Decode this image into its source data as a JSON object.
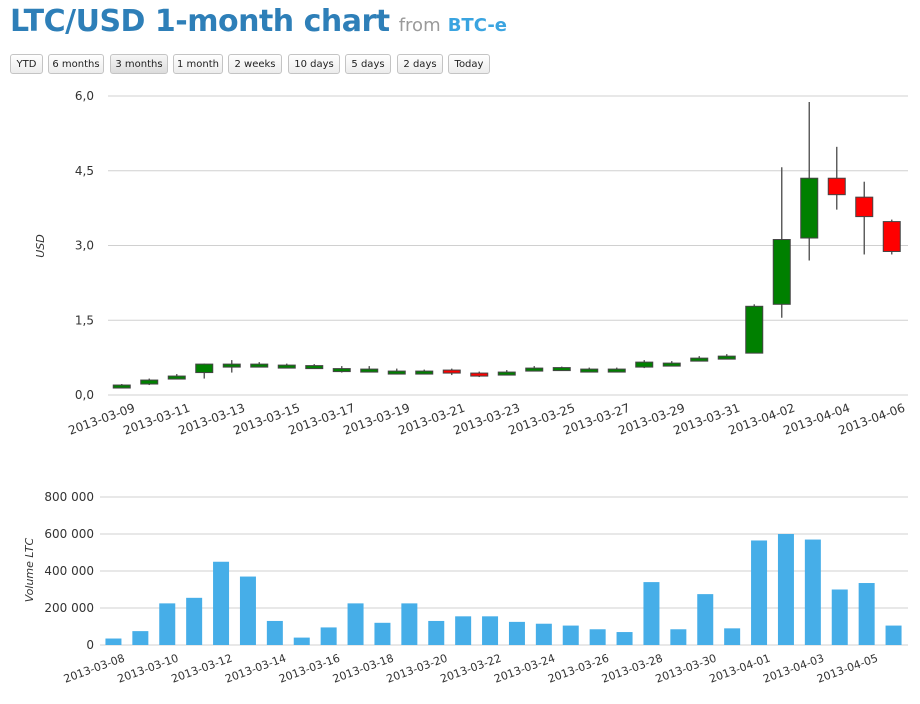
{
  "header": {
    "title": "LTC/USD 1-month chart",
    "from_label": "from",
    "source": "BTC-e"
  },
  "ranges": [
    "YTD",
    "6 months",
    "3 months",
    "1 month",
    "2 weeks",
    "10 days",
    "5 days",
    "2 days",
    "Today"
  ],
  "active_range": "3 months",
  "colors": {
    "up": "#008000",
    "down": "#ff0000",
    "volume": "#46aee8",
    "grid": "#d0d0d0",
    "title": "#2e7fb8",
    "source": "#3aa4e0"
  },
  "chart_data": [
    {
      "type": "candlestick",
      "ylabel": "USD",
      "ylim": [
        0,
        6
      ],
      "yticks": [
        "0,0",
        "1,5",
        "3,0",
        "4,5",
        "6,0"
      ],
      "ytick_values": [
        0,
        1.5,
        3,
        4.5,
        6
      ],
      "xtick_labels": [
        "2013-03-09",
        "2013-03-11",
        "2013-03-13",
        "2013-03-15",
        "2013-03-17",
        "2013-03-19",
        "2013-03-21",
        "2013-03-23",
        "2013-03-25",
        "2013-03-27",
        "2013-03-29",
        "2013-03-31",
        "2013-04-02",
        "2013-04-04",
        "2013-04-06"
      ],
      "grid": true,
      "candles": [
        {
          "date": "2013-03-09",
          "open": 0.18,
          "high": 0.22,
          "low": 0.16,
          "close": 0.2
        },
        {
          "date": "2013-03-10",
          "open": 0.22,
          "high": 0.33,
          "low": 0.2,
          "close": 0.3
        },
        {
          "date": "2013-03-11",
          "open": 0.38,
          "high": 0.42,
          "low": 0.34,
          "close": 0.38
        },
        {
          "date": "2013-03-12",
          "open": 0.45,
          "high": 0.63,
          "low": 0.33,
          "close": 0.62
        },
        {
          "date": "2013-03-13",
          "open": 0.6,
          "high": 0.7,
          "low": 0.45,
          "close": 0.62
        },
        {
          "date": "2013-03-14",
          "open": 0.6,
          "high": 0.66,
          "low": 0.56,
          "close": 0.62
        },
        {
          "date": "2013-03-15",
          "open": 0.6,
          "high": 0.63,
          "low": 0.57,
          "close": 0.6
        },
        {
          "date": "2013-03-16",
          "open": 0.59,
          "high": 0.62,
          "low": 0.56,
          "close": 0.59
        },
        {
          "date": "2013-03-17",
          "open": 0.53,
          "high": 0.58,
          "low": 0.45,
          "close": 0.53
        },
        {
          "date": "2013-03-18",
          "open": 0.52,
          "high": 0.58,
          "low": 0.49,
          "close": 0.52
        },
        {
          "date": "2013-03-19",
          "open": 0.48,
          "high": 0.53,
          "low": 0.44,
          "close": 0.48
        },
        {
          "date": "2013-03-20",
          "open": 0.48,
          "high": 0.51,
          "low": 0.45,
          "close": 0.48
        },
        {
          "date": "2013-03-21",
          "open": 0.5,
          "high": 0.53,
          "low": 0.4,
          "close": 0.45
        },
        {
          "date": "2013-03-22",
          "open": 0.44,
          "high": 0.47,
          "low": 0.36,
          "close": 0.42
        },
        {
          "date": "2013-03-23",
          "open": 0.46,
          "high": 0.5,
          "low": 0.43,
          "close": 0.46
        },
        {
          "date": "2013-03-24",
          "open": 0.54,
          "high": 0.58,
          "low": 0.51,
          "close": 0.54
        },
        {
          "date": "2013-03-25",
          "open": 0.55,
          "high": 0.57,
          "low": 0.52,
          "close": 0.55
        },
        {
          "date": "2013-03-26",
          "open": 0.52,
          "high": 0.55,
          "low": 0.49,
          "close": 0.52
        },
        {
          "date": "2013-03-27",
          "open": 0.52,
          "high": 0.55,
          "low": 0.5,
          "close": 0.52
        },
        {
          "date": "2013-03-28",
          "open": 0.56,
          "high": 0.7,
          "low": 0.54,
          "close": 0.66
        },
        {
          "date": "2013-03-29",
          "open": 0.64,
          "high": 0.68,
          "low": 0.61,
          "close": 0.64
        },
        {
          "date": "2013-03-30",
          "open": 0.74,
          "high": 0.78,
          "low": 0.7,
          "close": 0.74
        },
        {
          "date": "2013-03-31",
          "open": 0.78,
          "high": 0.82,
          "low": 0.76,
          "close": 0.78
        },
        {
          "date": "2013-04-01",
          "open": 0.84,
          "high": 1.82,
          "low": 0.84,
          "close": 1.78
        },
        {
          "date": "2013-04-02",
          "open": 1.82,
          "high": 4.57,
          "low": 1.55,
          "close": 3.12
        },
        {
          "date": "2013-04-03",
          "open": 3.15,
          "high": 5.88,
          "low": 2.7,
          "close": 4.35
        },
        {
          "date": "2013-04-04",
          "open": 4.35,
          "high": 4.98,
          "low": 3.72,
          "close": 4.02
        },
        {
          "date": "2013-04-05",
          "open": 3.97,
          "high": 4.28,
          "low": 2.82,
          "close": 3.58
        },
        {
          "date": "2013-04-06",
          "open": 3.48,
          "high": 3.52,
          "low": 2.82,
          "close": 2.88
        }
      ]
    },
    {
      "type": "bar",
      "ylabel": "Volume LTC",
      "ylim": [
        0,
        800000
      ],
      "yticks": [
        "0",
        "200 000",
        "400 000",
        "600 000",
        "800 000"
      ],
      "ytick_values": [
        0,
        200000,
        400000,
        600000,
        800000
      ],
      "xtick_labels": [
        "2013-03-08",
        "2013-03-10",
        "2013-03-12",
        "2013-03-14",
        "2013-03-16",
        "2013-03-18",
        "2013-03-20",
        "2013-03-22",
        "2013-03-24",
        "2013-03-26",
        "2013-03-28",
        "2013-03-30",
        "2013-04-01",
        "2013-04-03",
        "2013-04-05"
      ],
      "grid": true,
      "categories": [
        "2013-03-08",
        "2013-03-09",
        "2013-03-10",
        "2013-03-11",
        "2013-03-12",
        "2013-03-13",
        "2013-03-14",
        "2013-03-15",
        "2013-03-16",
        "2013-03-17",
        "2013-03-18",
        "2013-03-19",
        "2013-03-20",
        "2013-03-21",
        "2013-03-22",
        "2013-03-23",
        "2013-03-24",
        "2013-03-25",
        "2013-03-26",
        "2013-03-27",
        "2013-03-28",
        "2013-03-29",
        "2013-03-30",
        "2013-03-31",
        "2013-04-01",
        "2013-04-02",
        "2013-04-03",
        "2013-04-04",
        "2013-04-05",
        "2013-04-06"
      ],
      "values": [
        35000,
        75000,
        225000,
        255000,
        450000,
        370000,
        130000,
        40000,
        95000,
        225000,
        120000,
        225000,
        130000,
        155000,
        155000,
        125000,
        115000,
        105000,
        85000,
        70000,
        340000,
        85000,
        275000,
        90000,
        565000,
        600000,
        570000,
        300000,
        335000,
        105000
      ]
    }
  ]
}
